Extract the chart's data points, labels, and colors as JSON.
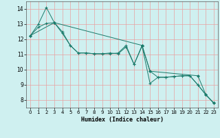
{
  "xlabel": "Humidex (Indice chaleur)",
  "bg_color": "#cff0f0",
  "grid_color": "#e8a0a0",
  "line_color": "#1a7a6a",
  "xlim": [
    -0.5,
    23.5
  ],
  "ylim": [
    7.5,
    14.5
  ],
  "yticks": [
    8,
    9,
    10,
    11,
    12,
    13,
    14
  ],
  "xticks": [
    0,
    1,
    2,
    3,
    4,
    5,
    6,
    7,
    8,
    9,
    10,
    11,
    12,
    13,
    14,
    15,
    16,
    17,
    18,
    19,
    20,
    21,
    22,
    23
  ],
  "series1": {
    "x": [
      0,
      1,
      2,
      3,
      4,
      5,
      6,
      7,
      8,
      9,
      10,
      11,
      12,
      13,
      14,
      15,
      16,
      17,
      18,
      19,
      20,
      21,
      22,
      23
    ],
    "y": [
      12.25,
      12.8,
      13.05,
      13.1,
      12.5,
      11.6,
      11.1,
      11.1,
      11.05,
      11.05,
      11.1,
      11.05,
      11.5,
      10.35,
      11.6,
      9.9,
      9.5,
      9.5,
      9.55,
      9.6,
      9.6,
      9.0,
      8.35,
      7.8
    ]
  },
  "series2": {
    "x": [
      0,
      1,
      2,
      3,
      4,
      5,
      6,
      7,
      8,
      9,
      10,
      11,
      12,
      13,
      14,
      15,
      16,
      17,
      18,
      19,
      20,
      21,
      22,
      23
    ],
    "y": [
      12.25,
      13.0,
      14.1,
      13.1,
      12.4,
      11.6,
      11.1,
      11.1,
      11.05,
      11.05,
      11.05,
      11.1,
      11.6,
      10.35,
      11.55,
      9.1,
      9.5,
      9.5,
      9.55,
      9.6,
      9.6,
      9.0,
      8.35,
      7.8
    ]
  },
  "series3": {
    "x": [
      0,
      3,
      14,
      15,
      21,
      22,
      23
    ],
    "y": [
      12.25,
      13.1,
      11.6,
      9.9,
      9.6,
      8.35,
      7.8
    ]
  }
}
